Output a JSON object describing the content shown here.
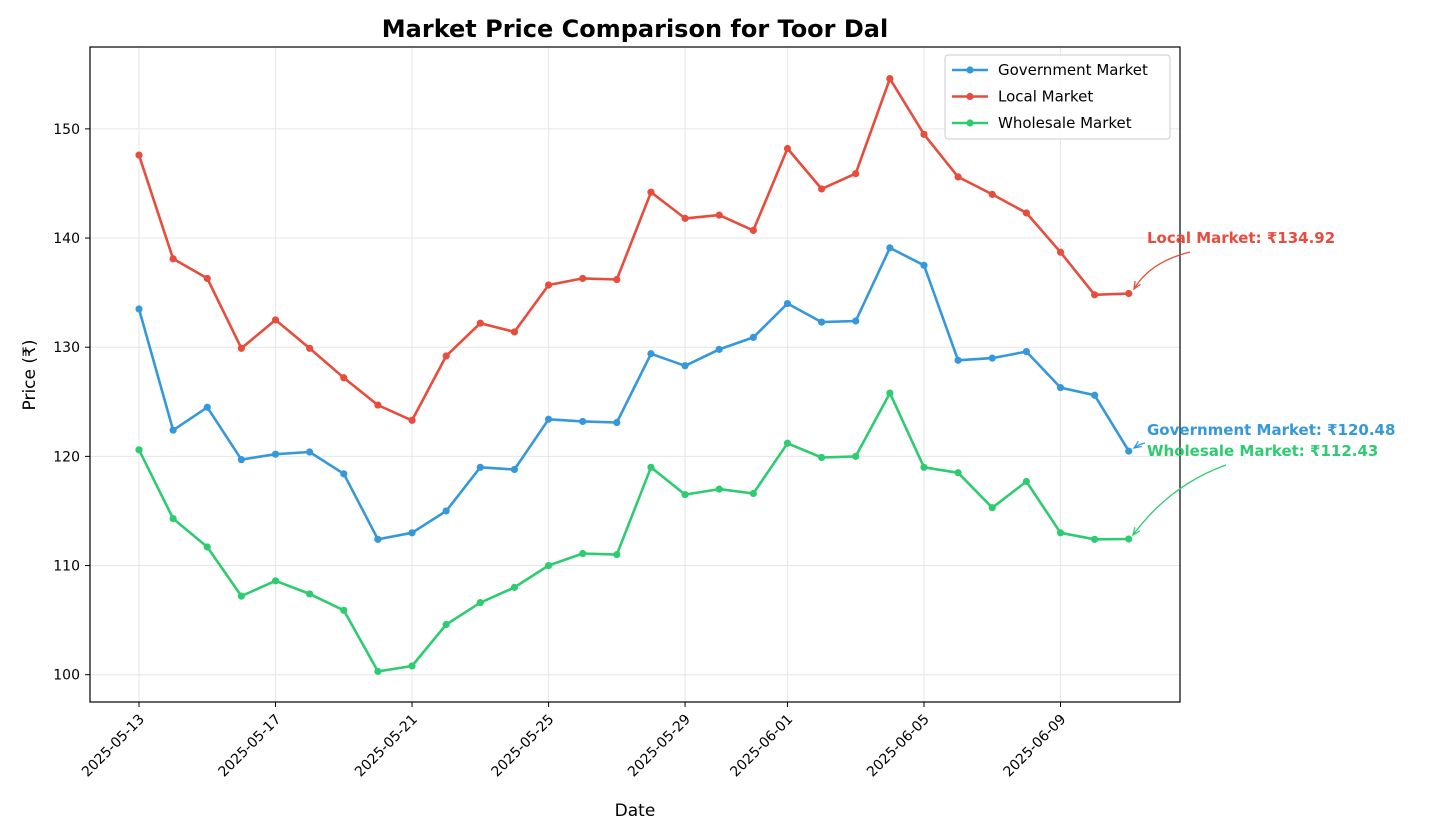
{
  "chart_data": {
    "type": "line",
    "title": "Market Price Comparison for Toor Dal",
    "xlabel": "Date",
    "ylabel": "Price (₹)",
    "x": [
      "2025-05-13",
      "2025-05-14",
      "2025-05-15",
      "2025-05-16",
      "2025-05-17",
      "2025-05-18",
      "2025-05-19",
      "2025-05-20",
      "2025-05-21",
      "2025-05-22",
      "2025-05-23",
      "2025-05-24",
      "2025-05-25",
      "2025-05-26",
      "2025-05-27",
      "2025-05-28",
      "2025-05-29",
      "2025-05-30",
      "2025-05-31",
      "2025-06-01",
      "2025-06-02",
      "2025-06-03",
      "2025-06-04",
      "2025-06-05",
      "2025-06-06",
      "2025-06-07",
      "2025-06-08",
      "2025-06-09",
      "2025-06-10",
      "2025-06-11"
    ],
    "x_ticks": [
      "2025-05-13",
      "2025-05-17",
      "2025-05-21",
      "2025-05-25",
      "2025-05-29",
      "2025-06-01",
      "2025-06-05",
      "2025-06-09"
    ],
    "y_ticks": [
      100,
      110,
      120,
      130,
      140,
      150
    ],
    "ylim": [
      97.5,
      157.5
    ],
    "grid": true,
    "legend_position": "top-right",
    "series": [
      {
        "name": "Government Market",
        "color": "#3498db",
        "values": [
          133.5,
          122.4,
          124.5,
          119.7,
          120.2,
          120.4,
          118.4,
          112.4,
          113.0,
          115.0,
          119.0,
          118.8,
          123.4,
          123.2,
          123.1,
          129.4,
          128.3,
          129.8,
          130.9,
          134.0,
          132.3,
          132.4,
          139.1,
          137.5,
          128.8,
          129.0,
          129.6,
          126.3,
          125.6,
          120.48
        ]
      },
      {
        "name": "Local Market",
        "color": "#e74c3c",
        "values": [
          147.6,
          138.1,
          136.3,
          129.9,
          132.5,
          129.9,
          127.2,
          124.7,
          123.3,
          129.2,
          132.2,
          131.4,
          135.7,
          136.3,
          136.2,
          144.2,
          141.8,
          142.1,
          140.7,
          148.2,
          144.5,
          145.9,
          154.6,
          149.5,
          145.6,
          144.0,
          142.3,
          138.7,
          134.8,
          134.92
        ]
      },
      {
        "name": "Wholesale Market",
        "color": "#2ecc71",
        "values": [
          120.6,
          114.3,
          111.7,
          107.2,
          108.6,
          107.4,
          105.9,
          100.3,
          100.8,
          104.6,
          106.6,
          108.0,
          110.0,
          111.1,
          111.0,
          119.0,
          116.5,
          117.0,
          116.6,
          121.2,
          119.9,
          120.0,
          125.8,
          119.0,
          118.5,
          115.3,
          117.7,
          113.0,
          112.4,
          112.43
        ]
      }
    ],
    "annotations": [
      {
        "text": "Local Market: ₹134.92",
        "series": 1,
        "color": "#e74c3c"
      },
      {
        "text": "Government Market: ₹120.48",
        "series": 0,
        "color": "#3498db"
      },
      {
        "text": "Wholesale Market: ₹112.43",
        "series": 2,
        "color": "#2ecc71"
      }
    ]
  }
}
